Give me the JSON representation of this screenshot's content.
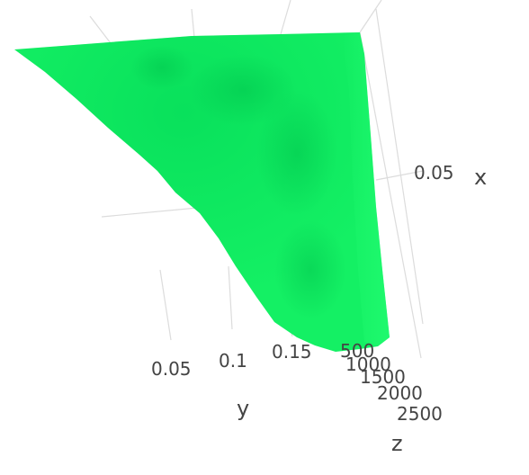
{
  "chart_data": {
    "type": "surface",
    "colors": {
      "surface": "#14f064",
      "surface_light": "#2cff78",
      "surface_dark": "#00c84c"
    },
    "axes": {
      "x": {
        "title": "x",
        "ticks": [
          "0.05"
        ]
      },
      "y": {
        "title": "y",
        "ticks": [
          "0.05",
          "0.1",
          "0.15"
        ]
      },
      "z": {
        "title": "z",
        "ticks": [
          "500",
          "1000",
          "1500",
          "2000",
          "2500"
        ]
      }
    },
    "grid": true
  }
}
